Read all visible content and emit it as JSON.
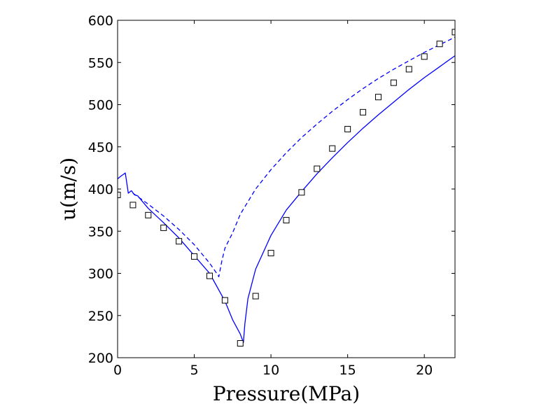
{
  "chart_data": {
    "type": "line",
    "title": "",
    "xlabel": "Pressure(MPa)",
    "ylabel": "u(m/s)",
    "xlim": [
      0,
      22
    ],
    "ylim": [
      200,
      600
    ],
    "xticks": [
      0,
      5,
      10,
      15,
      20
    ],
    "yticks": [
      200,
      250,
      300,
      350,
      400,
      450,
      500,
      550,
      600
    ],
    "xtick_labels": [
      "0",
      "5",
      "10",
      "15",
      "20"
    ],
    "ytick_labels": [
      "200",
      "250",
      "300",
      "350",
      "400",
      "450",
      "500",
      "550",
      "600"
    ],
    "grid": false,
    "legend": "none",
    "series": [
      {
        "style": "solid",
        "color": "#0000ff",
        "x": [
          0.0,
          0.2,
          0.5,
          0.7,
          0.9,
          1.1,
          1.3,
          2.0,
          3.0,
          4.0,
          5.0,
          6.0,
          7.0,
          7.5,
          8.0,
          8.2,
          8.3,
          8.5,
          9.0,
          10.0,
          11.0,
          12.0,
          13.0,
          14.0,
          15.0,
          16.0,
          17.0,
          18.0,
          19.0,
          20.0,
          21.0,
          22.0
        ],
        "y": [
          412,
          415,
          419,
          395,
          398,
          393,
          392,
          377,
          360,
          342,
          321,
          300,
          267,
          245,
          228,
          218,
          240,
          270,
          305,
          345,
          375,
          397,
          418,
          437,
          455,
          472,
          488,
          503,
          518,
          532,
          545,
          558
        ]
      },
      {
        "style": "dashed",
        "color": "#0000ff",
        "x": [
          1.0,
          2.0,
          3.0,
          4.0,
          5.0,
          6.0,
          6.5,
          6.6,
          6.8,
          7.0,
          7.5,
          8.0,
          9.0,
          10.0,
          11.0,
          12.0,
          13.0,
          14.0,
          15.0,
          16.0,
          17.0,
          18.0,
          19.0,
          20.0,
          21.0,
          22.0
        ],
        "y": [
          395,
          382,
          368,
          352,
          334,
          312,
          299,
          296,
          315,
          330,
          348,
          370,
          400,
          423,
          443,
          461,
          477,
          492,
          506,
          519,
          531,
          542,
          552,
          562,
          571,
          580
        ]
      },
      {
        "style": "markers",
        "marker": "open-square",
        "color": "#000000",
        "x": [
          0,
          1,
          2,
          3,
          4,
          5,
          6,
          7,
          8,
          9,
          10,
          11,
          12,
          13,
          14,
          15,
          16,
          17,
          18,
          19,
          20,
          21,
          22
        ],
        "y": [
          393,
          381,
          369,
          354,
          338,
          320,
          297,
          268,
          217,
          273,
          324,
          363,
          396,
          424,
          448,
          471,
          491,
          509,
          526,
          542,
          557,
          572,
          586
        ]
      }
    ]
  }
}
